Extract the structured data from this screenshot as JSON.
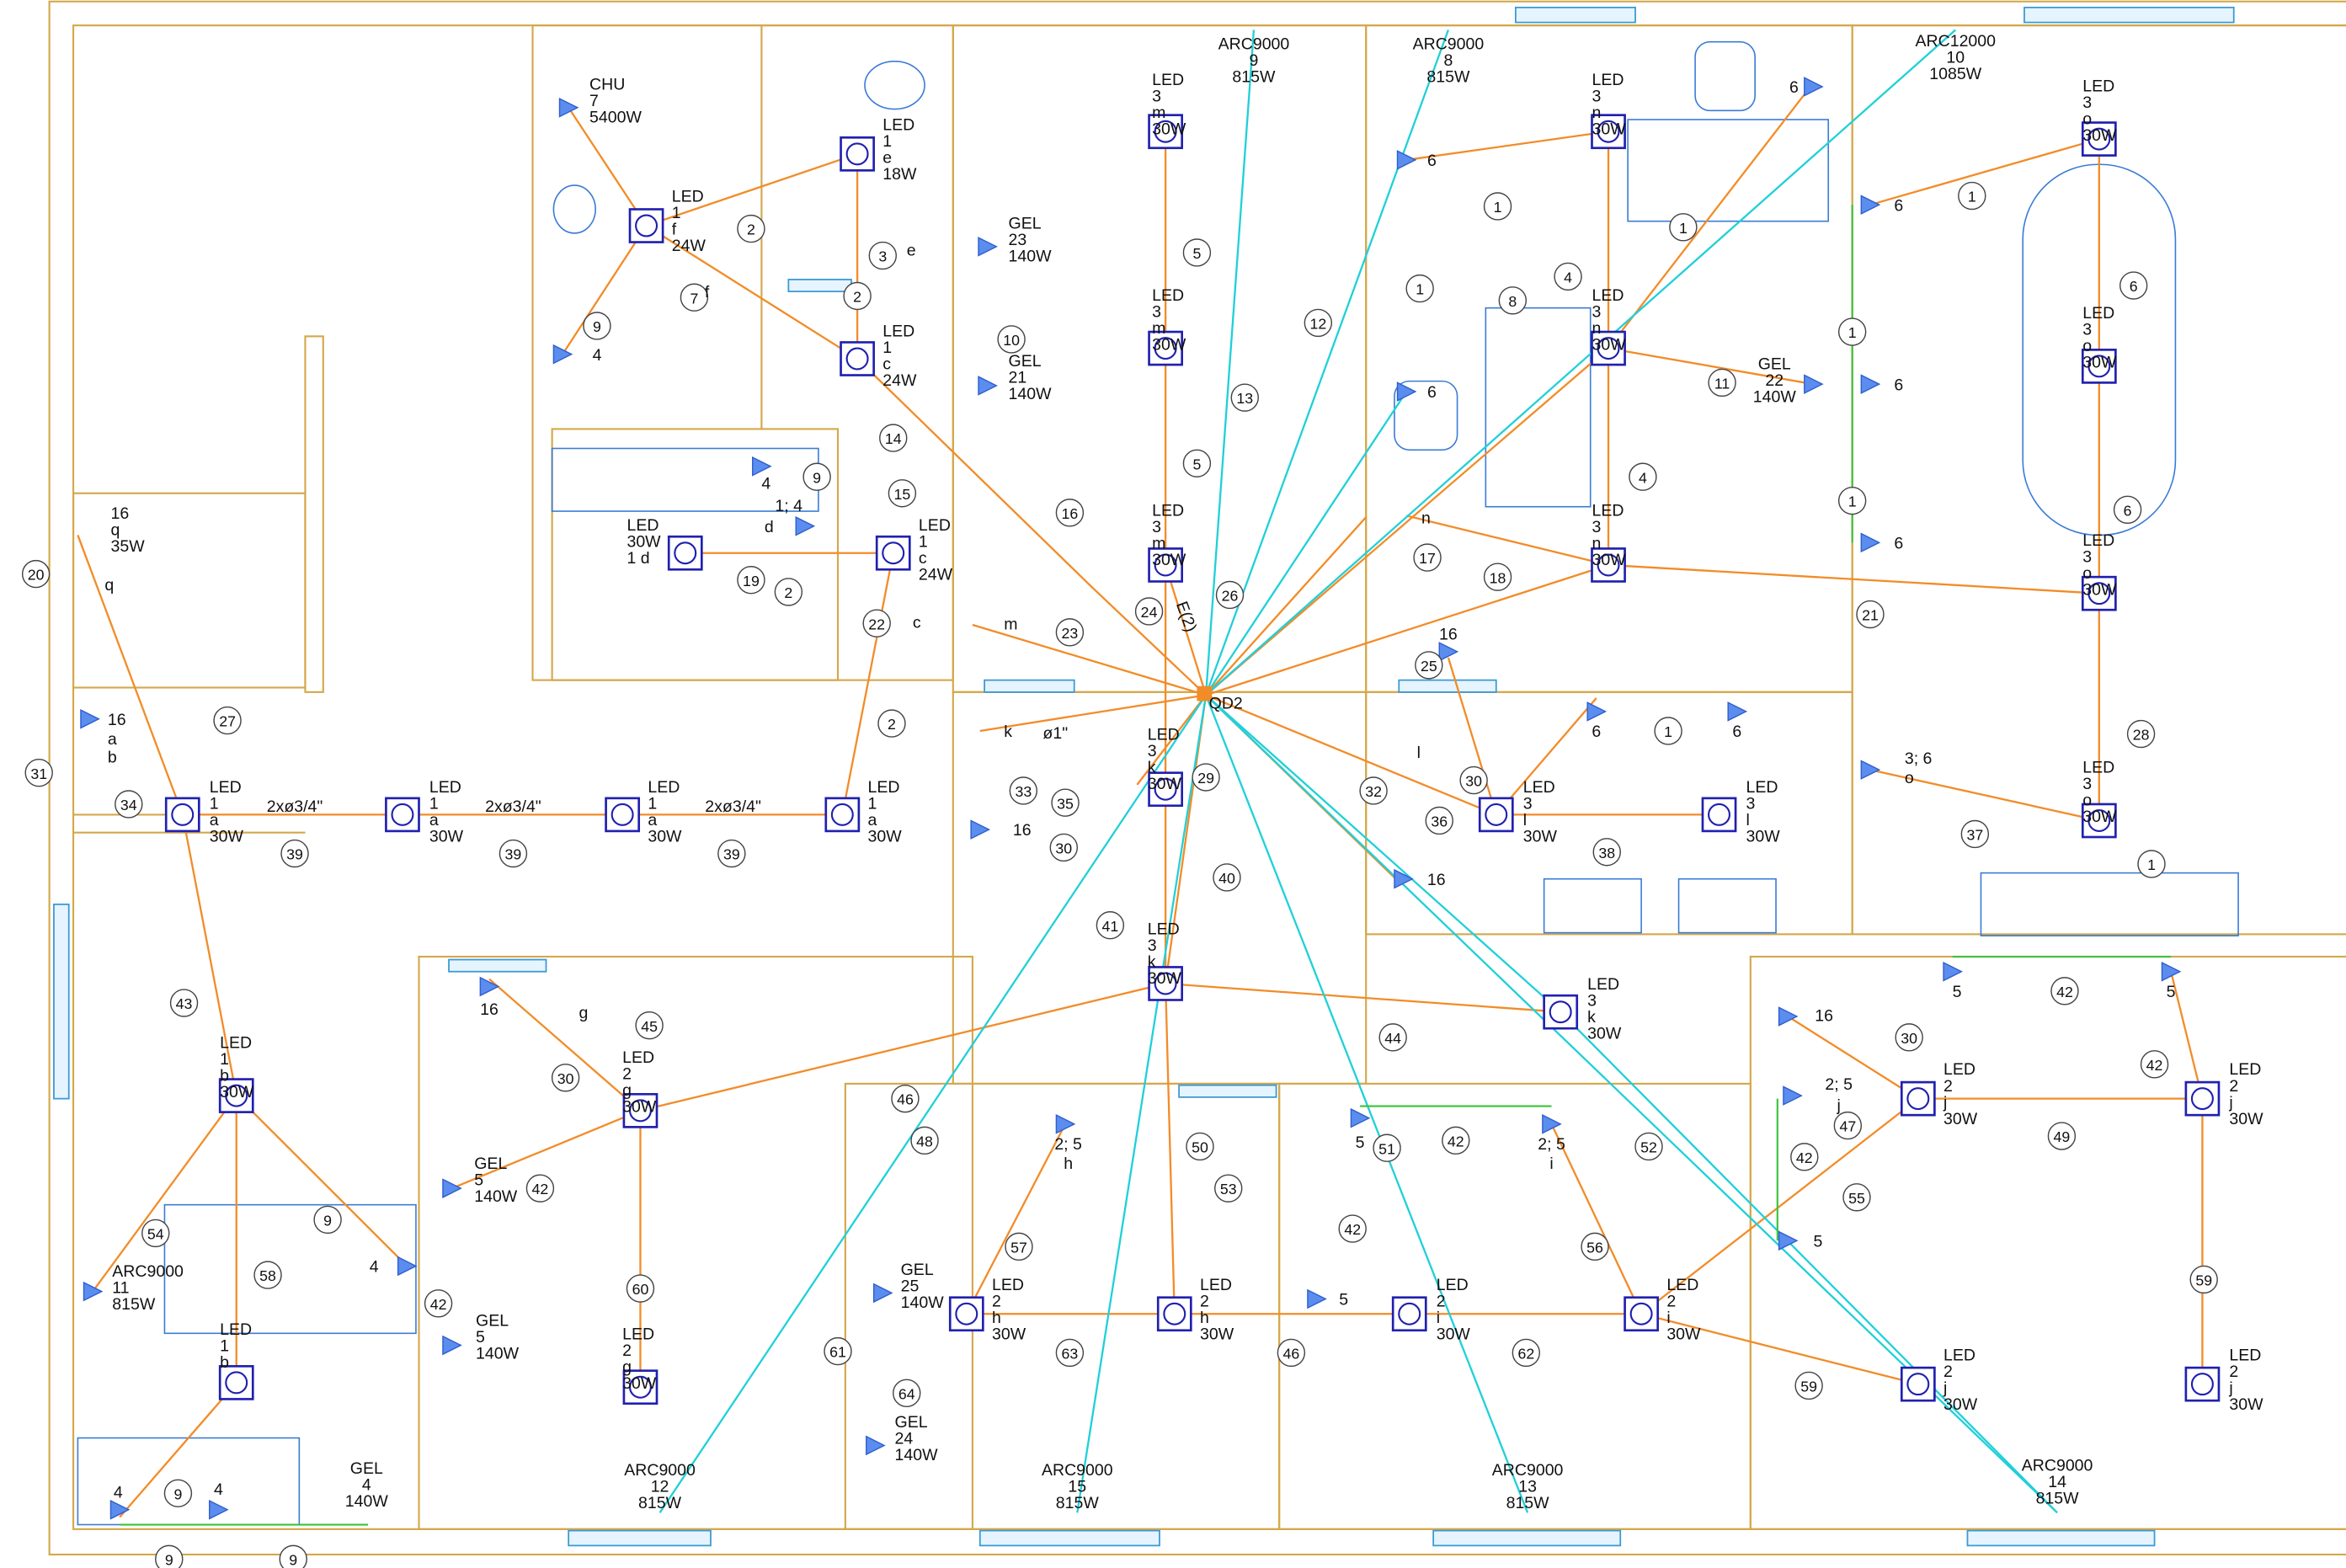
{
  "plan": {
    "panel": "QD2",
    "feeder": "E(2)",
    "fixtures": [
      {
        "lines": [
          "LED",
          "1",
          "f",
          "24W"
        ]
      },
      {
        "lines": [
          "LED",
          "1",
          "e",
          "18W"
        ]
      },
      {
        "lines": [
          "LED",
          "1",
          "c",
          "24W"
        ]
      },
      {
        "lines": [
          "LED",
          "1",
          "c",
          "24W"
        ]
      },
      {
        "lines": [
          "LED",
          "30W",
          "1 d"
        ]
      },
      {
        "lines": [
          "LED",
          "1",
          "a",
          "30W"
        ]
      },
      {
        "lines": [
          "LED",
          "1",
          "a",
          "30W"
        ]
      },
      {
        "lines": [
          "LED",
          "1",
          "a",
          "30W"
        ]
      },
      {
        "lines": [
          "LED",
          "1",
          "a",
          "30W"
        ]
      },
      {
        "lines": [
          "LED",
          "1",
          "b",
          "30W"
        ]
      },
      {
        "lines": [
          "LED",
          "1",
          "b"
        ]
      },
      {
        "lines": [
          "LED",
          "3",
          "m",
          "30W"
        ]
      },
      {
        "lines": [
          "LED",
          "3",
          "m",
          "30W"
        ]
      },
      {
        "lines": [
          "LED",
          "3",
          "m",
          "30W"
        ]
      },
      {
        "lines": [
          "LED",
          "3",
          "k",
          "30W"
        ]
      },
      {
        "lines": [
          "LED",
          "3",
          "k",
          "30W"
        ]
      },
      {
        "lines": [
          "LED",
          "3",
          "n",
          "30W"
        ]
      },
      {
        "lines": [
          "LED",
          "3",
          "n",
          "30W"
        ]
      },
      {
        "lines": [
          "LED",
          "3",
          "n",
          "30W"
        ]
      },
      {
        "lines": [
          "LED",
          "3",
          "o",
          "30W"
        ]
      },
      {
        "lines": [
          "LED",
          "3",
          "o",
          "30W"
        ]
      },
      {
        "lines": [
          "LED",
          "3",
          "o",
          "30W"
        ]
      },
      {
        "lines": [
          "LED",
          "3",
          "o",
          "30W"
        ]
      },
      {
        "lines": [
          "LED",
          "3",
          "l",
          "30W"
        ]
      },
      {
        "lines": [
          "LED",
          "3",
          "l",
          "30W"
        ]
      },
      {
        "lines": [
          "LED",
          "3",
          "k",
          "30W"
        ]
      },
      {
        "lines": [
          "LED",
          "2",
          "g",
          "30W"
        ]
      },
      {
        "lines": [
          "LED",
          "2",
          "g",
          "30W"
        ]
      },
      {
        "lines": [
          "LED",
          "2",
          "h",
          "30W"
        ]
      },
      {
        "lines": [
          "LED",
          "2",
          "h",
          "30W"
        ]
      },
      {
        "lines": [
          "LED",
          "2",
          "i",
          "30W"
        ]
      },
      {
        "lines": [
          "LED",
          "2",
          "i",
          "30W"
        ]
      },
      {
        "lines": [
          "LED",
          "2",
          "j",
          "30W"
        ]
      },
      {
        "lines": [
          "LED",
          "2",
          "j",
          "30W"
        ]
      },
      {
        "lines": [
          "LED",
          "2",
          "j",
          "30W"
        ]
      },
      {
        "lines": [
          "LED",
          "2",
          "j",
          "30W"
        ]
      }
    ],
    "equipment": [
      {
        "lines": [
          "CHU",
          "7",
          "5400W"
        ]
      },
      {
        "lines": [
          "ARC9000",
          "9",
          "815W"
        ]
      },
      {
        "lines": [
          "ARC9000",
          "8",
          "815W"
        ]
      },
      {
        "lines": [
          "ARC12000",
          "10",
          "1085W"
        ]
      },
      {
        "lines": [
          "GEL",
          "23",
          "140W"
        ]
      },
      {
        "lines": [
          "GEL",
          "21",
          "140W"
        ]
      },
      {
        "lines": [
          "GEL",
          "22",
          "140W"
        ]
      },
      {
        "lines": [
          "GEL",
          "5",
          "140W"
        ]
      },
      {
        "lines": [
          "GEL",
          "5",
          "140W"
        ]
      },
      {
        "lines": [
          "GEL",
          "25",
          "140W"
        ]
      },
      {
        "lines": [
          "GEL",
          "24",
          "140W"
        ]
      },
      {
        "lines": [
          "GEL",
          "4",
          "140W"
        ]
      },
      {
        "lines": [
          "ARC9000",
          "11",
          "815W"
        ]
      },
      {
        "lines": [
          "ARC9000",
          "12",
          "815W"
        ]
      },
      {
        "lines": [
          "ARC9000",
          "15",
          "815W"
        ]
      },
      {
        "lines": [
          "ARC9000",
          "13",
          "815W"
        ]
      },
      {
        "lines": [
          "ARC9000",
          "14",
          "815W"
        ]
      },
      {
        "lines": [
          "16",
          "q",
          "35W"
        ]
      }
    ],
    "circuits": [
      2,
      2,
      2,
      2,
      3,
      7,
      9,
      9,
      9,
      9,
      9,
      9,
      10,
      14,
      15,
      16,
      19,
      22,
      23,
      24,
      26,
      20,
      27,
      31,
      34,
      39,
      39,
      39,
      33,
      35,
      30,
      30,
      30,
      30,
      29,
      40,
      41,
      43,
      45,
      46,
      46,
      48,
      42,
      42,
      42,
      42,
      42,
      42,
      42,
      44,
      50,
      51,
      52,
      53,
      57,
      54,
      58,
      60,
      61,
      63,
      64,
      62,
      56,
      55,
      47,
      49,
      59,
      59,
      1,
      1,
      1,
      1,
      1,
      1,
      1,
      1,
      4,
      4,
      8,
      5,
      5,
      6,
      6,
      11,
      12,
      13,
      17,
      18,
      21,
      25,
      28,
      32,
      36,
      37,
      38
    ],
    "outlet_labels": [
      "4",
      "4",
      "1; 4",
      "d",
      "e",
      "f",
      "c",
      "m",
      "k",
      "ø1\"",
      "16",
      "q",
      "16",
      "a",
      "b",
      "2xø3/4\"",
      "2xø3/4\"",
      "2xø3/4\"",
      "6",
      "6",
      "6",
      "6",
      "6",
      "6",
      "n",
      "l",
      "16",
      "6",
      "6",
      "16",
      "3; 6",
      "o",
      "16",
      "g",
      "4",
      "2; 5",
      "h",
      "5",
      "2; 5",
      "i",
      "5",
      "5",
      "16",
      "2; 5",
      "j",
      "5",
      "5",
      "4",
      "4"
    ]
  }
}
